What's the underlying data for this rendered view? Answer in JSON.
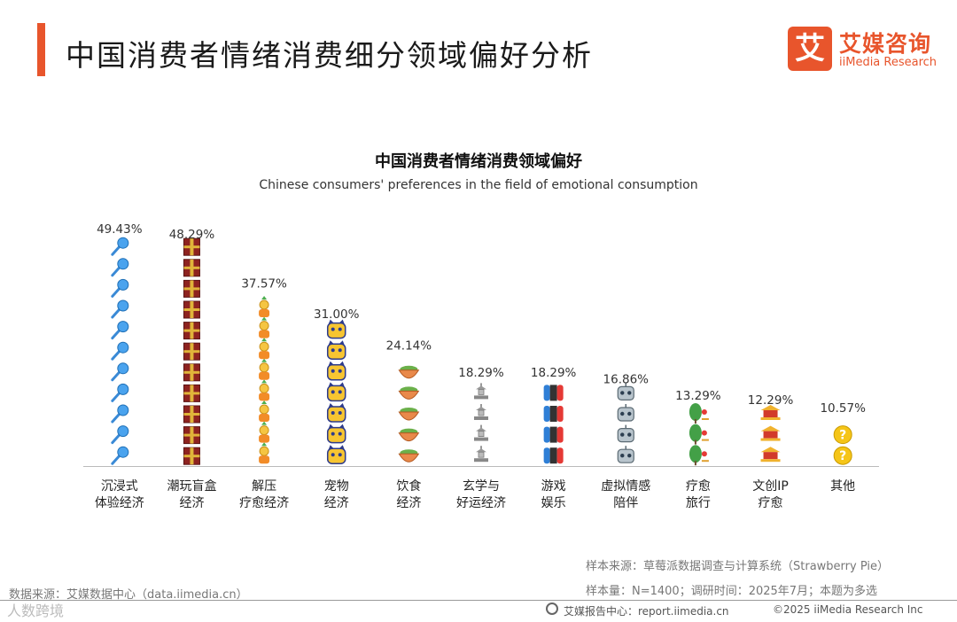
{
  "header": {
    "title": "中国消费者情绪消费细分领域偏好分析",
    "logo_mark": "艾",
    "logo_cn": "艾媒咨询",
    "logo_en": "iiMedia Research"
  },
  "colors": {
    "accent": "#e8552c",
    "axis": "#bbbbbb"
  },
  "chart_data": {
    "type": "bar",
    "title": "中国消费者情绪消费领域偏好",
    "subtitle": "Chinese consumers' preferences in the field of emotional consumption",
    "categories": [
      [
        "沉浸式",
        "体验经济"
      ],
      [
        "潮玩盲盒",
        "经济"
      ],
      [
        "解压",
        "疗愈经济"
      ],
      [
        "宠物",
        "经济"
      ],
      [
        "饮食",
        "经济"
      ],
      [
        "玄学与",
        "好运经济"
      ],
      [
        "游戏",
        "娱乐"
      ],
      [
        "虚拟情感",
        "陪伴"
      ],
      [
        "疗愈",
        "旅行"
      ],
      [
        "文创IP",
        "疗愈"
      ],
      [
        "其他"
      ]
    ],
    "values": [
      49.43,
      48.29,
      37.57,
      31.0,
      24.14,
      18.29,
      18.29,
      16.86,
      13.29,
      12.29,
      10.57
    ],
    "value_labels": [
      "49.43%",
      "48.29%",
      "37.57%",
      "31.00%",
      "24.14%",
      "18.29%",
      "18.29%",
      "16.86%",
      "13.29%",
      "12.29%",
      "10.57%"
    ],
    "pictograms": [
      "microphone-icon",
      "gift-box-icon",
      "figurine-icon",
      "pet-cat-icon",
      "food-bowl-icon",
      "pagoda-icon",
      "game-console-icon",
      "robot-icon",
      "tree-pin-icon",
      "palace-icon",
      "question-coin-icon"
    ],
    "unit": "%",
    "ylim": [
      0,
      50
    ],
    "grid": false,
    "legend": "none"
  },
  "footer": {
    "source_left": "数据来源：艾媒数据中心（data.iimedia.cn）",
    "sample_source": "样本来源：草莓派数据调查与计算系统（Strawberry Pie）",
    "sample_size": "样本量：N=1400；调研时间：2025年7月；本题为多选",
    "report_center": "艾媒报告中心：report.iimedia.cn",
    "copyright": "©2025  iiMedia Research  Inc",
    "watermark": "人数跨境"
  }
}
